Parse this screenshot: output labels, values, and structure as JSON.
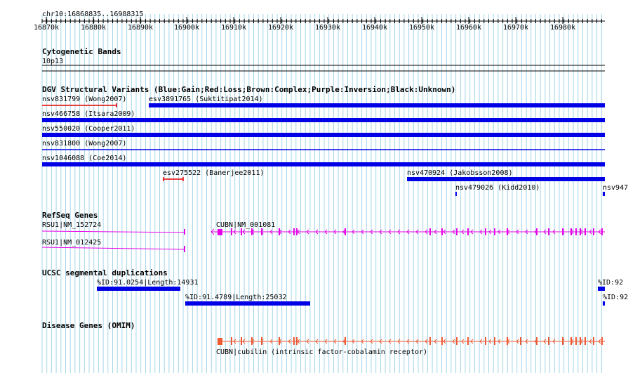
{
  "coordinates": "chr10:16868835..16988315",
  "ruler": {
    "ticks": [
      "16870k",
      "16880k",
      "16890k",
      "16900k",
      "16910k",
      "16920k",
      "16930k",
      "16940k",
      "16950k",
      "16960k",
      "16970k",
      "16980k"
    ]
  },
  "tracks": {
    "cytoband": {
      "title": "Cytogenetic Bands",
      "band": "10p13"
    },
    "dgv": {
      "title": "DGV Structural Variants (Blue:Gain;Red:Loss;Brown:Complex;Purple:Inversion;Black:Unknown)",
      "variants": [
        "nsv831799 (Wong2007)",
        "esv3891765 (Suktitipat2014)",
        "nsv466758 (Itsara2009)",
        "nsv550020 (Cooper2011)",
        "nsv831800 (Wong2007)",
        "nsv1046088 (Coe2014)",
        "esv275522 (Banerjee2011)",
        "nsv470924 (Jakobsson2008)",
        "nsv479026 (Kidd2010)",
        "nsv947"
      ]
    },
    "refseq": {
      "title": "RefSeq Genes",
      "genes": [
        "RSU1|NM_152724",
        "RSU1|NM_012425",
        "CUBN|NM_001081"
      ]
    },
    "segdup": {
      "title": "UCSC segmental duplications",
      "items": [
        "%ID:91.0254|Length:14931",
        "%ID:91.4789|Length:25032",
        "%ID:92",
        "%ID:92"
      ]
    },
    "omim": {
      "title": "Disease Genes (OMIM)",
      "gene": "CUBN|cubilin (intrinsic factor-cobalamin receptor)"
    }
  },
  "colors": {
    "gain": "#0000e6",
    "loss": "#e60000",
    "refseq": "#e600e6",
    "omim": "#f05a32",
    "grid": "#a8d8ea"
  }
}
